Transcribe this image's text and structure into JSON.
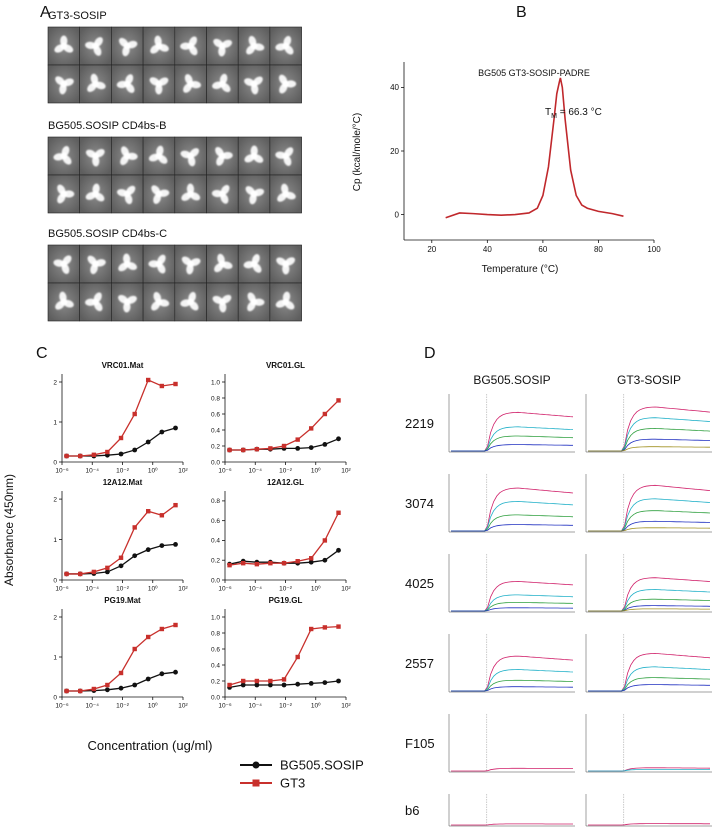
{
  "panel_labels": [
    "A",
    "B",
    "C",
    "D"
  ],
  "panel_a": {
    "groups": [
      {
        "title": "GT3-SOSIP"
      },
      {
        "title": "BG505.SOSIP CD4bs-B"
      },
      {
        "title": "BG505.SOSIP CD4bs-C"
      }
    ]
  },
  "panel_c": {
    "y_label": "Absorbance (450nm)",
    "x_label": "Concentration (ug/ml)",
    "series": [
      {
        "name": "BG505.SOSIP",
        "color": "#111111"
      },
      {
        "name": "GT3",
        "color": "#c8302c"
      }
    ]
  },
  "panel_d": {
    "columns": [
      "BG505.SOSIP",
      "GT3-SOSIP"
    ],
    "colors": [
      "#d0206a",
      "#20b0c8",
      "#30a040",
      "#2030c0",
      "#a09020"
    ],
    "rows": [
      {
        "label": "2219",
        "cells": [
          [
            0.72,
            0.45,
            0.28,
            0.12
          ],
          [
            0.82,
            0.62,
            0.42,
            0.22,
            0.08
          ]
        ]
      },
      {
        "label": "3074",
        "cells": [
          [
            0.8,
            0.55,
            0.3,
            0.12
          ],
          [
            0.85,
            0.6,
            0.38,
            0.18,
            0.06
          ]
        ]
      },
      {
        "label": "4025",
        "cells": [
          [
            0.55,
            0.3,
            0.16,
            0.06
          ],
          [
            0.62,
            0.4,
            0.22,
            0.1,
            0.04
          ]
        ]
      },
      {
        "label": "2557",
        "cells": [
          [
            0.65,
            0.4,
            0.2,
            0.08
          ],
          [
            0.7,
            0.45,
            0.25,
            0.12
          ]
        ]
      },
      {
        "label": "F105",
        "cells": [
          [
            0.05
          ],
          [
            0.06,
            0.03
          ]
        ]
      },
      {
        "label": "b6",
        "cells": [
          [
            0.04
          ],
          [
            0.05
          ]
        ]
      }
    ]
  },
  "chart_data": [
    {
      "type": "line",
      "title": "BG505 GT3-SOSIP-PADRE",
      "annotation": [
        "T",
        "M",
        " = 66.3 °C"
      ],
      "x_label": "Temperature (°C)",
      "y_label": "Cp (kcal/mole/°C)",
      "x": [
        25,
        30,
        35,
        40,
        45,
        50,
        55,
        58,
        60,
        62,
        64,
        65,
        66,
        66.3,
        67,
        68,
        70,
        72,
        74,
        76,
        80,
        85,
        89
      ],
      "series": [
        {
          "color": "#c0282c",
          "values": [
            -1,
            0.5,
            0.3,
            0,
            -0.2,
            0,
            0.5,
            2,
            6,
            15,
            30,
            38,
            42,
            43,
            40,
            30,
            14,
            6,
            3,
            2,
            1,
            0.3,
            -0.5
          ]
        }
      ],
      "xlim": [
        10,
        100
      ],
      "xticks": [
        20,
        40,
        60,
        80,
        100
      ],
      "ylim": [
        -8,
        48
      ],
      "yticks": [
        0,
        20,
        40
      ]
    },
    {
      "type": "line",
      "title": "VRC01.Mat",
      "log_x": true,
      "x": [
        2e-06,
        1.6e-05,
        0.000128,
        0.001,
        0.008,
        0.064,
        0.5,
        4,
        32
      ],
      "series": [
        {
          "values": [
            0.15,
            0.15,
            0.15,
            0.17,
            0.2,
            0.3,
            0.5,
            0.75,
            0.85
          ]
        },
        {
          "values": [
            0.15,
            0.15,
            0.18,
            0.25,
            0.6,
            1.2,
            2.05,
            1.9,
            1.95
          ]
        }
      ],
      "xlim": [
        1e-06,
        100
      ],
      "xticks": [
        {
          "value": 1e-06,
          "label": "10⁻⁶"
        },
        {
          "value": 0.0001,
          "label": "10⁻⁴"
        },
        {
          "value": 0.01,
          "label": "10⁻²"
        },
        {
          "value": 1,
          "label": "10⁰"
        },
        {
          "value": 100,
          "label": "10²"
        }
      ],
      "ylim": [
        0,
        2.2
      ],
      "yticks": [
        0,
        1,
        2
      ]
    },
    {
      "type": "line",
      "title": "VRC01.GL",
      "log_x": true,
      "x": [
        2e-06,
        1.6e-05,
        0.000128,
        0.001,
        0.008,
        0.064,
        0.5,
        4,
        32
      ],
      "series": [
        {
          "values": [
            0.15,
            0.15,
            0.16,
            0.16,
            0.17,
            0.17,
            0.18,
            0.22,
            0.29
          ]
        },
        {
          "values": [
            0.15,
            0.15,
            0.16,
            0.17,
            0.2,
            0.28,
            0.42,
            0.6,
            0.77
          ]
        }
      ],
      "xlim": [
        1e-06,
        100
      ],
      "xticks": [
        {
          "value": 1e-06,
          "label": "10⁻⁶"
        },
        {
          "value": 0.0001,
          "label": "10⁻⁴"
        },
        {
          "value": 0.01,
          "label": "10⁻²"
        },
        {
          "value": 1,
          "label": "10⁰"
        },
        {
          "value": 100,
          "label": "10²"
        }
      ],
      "ylim": [
        0,
        1.1
      ],
      "yticks": [
        {
          "value": 0,
          "label": "0.0"
        },
        0.2,
        0.4,
        0.6,
        0.8,
        {
          "value": 1,
          "label": "1.0"
        }
      ]
    },
    {
      "type": "line",
      "title": "12A12.Mat",
      "log_x": true,
      "x": [
        2e-06,
        1.6e-05,
        0.000128,
        0.001,
        0.008,
        0.064,
        0.5,
        4,
        32
      ],
      "series": [
        {
          "values": [
            0.15,
            0.15,
            0.16,
            0.2,
            0.35,
            0.6,
            0.75,
            0.85,
            0.88
          ]
        },
        {
          "values": [
            0.15,
            0.15,
            0.2,
            0.3,
            0.55,
            1.3,
            1.7,
            1.6,
            1.85
          ]
        }
      ],
      "xlim": [
        1e-06,
        100
      ],
      "xticks": [
        {
          "value": 1e-06,
          "label": "10⁻⁶"
        },
        {
          "value": 0.0001,
          "label": "10⁻⁴"
        },
        {
          "value": 0.01,
          "label": "10⁻²"
        },
        {
          "value": 1,
          "label": "10⁰"
        },
        {
          "value": 100,
          "label": "10²"
        }
      ],
      "ylim": [
        0,
        2.2
      ],
      "yticks": [
        0,
        1,
        2
      ]
    },
    {
      "type": "line",
      "title": "12A12.GL",
      "log_x": true,
      "x": [
        2e-06,
        1.6e-05,
        0.000128,
        0.001,
        0.008,
        0.064,
        0.5,
        4,
        32
      ],
      "series": [
        {
          "values": [
            0.16,
            0.19,
            0.18,
            0.18,
            0.17,
            0.17,
            0.18,
            0.2,
            0.3
          ]
        },
        {
          "values": [
            0.15,
            0.17,
            0.16,
            0.17,
            0.17,
            0.19,
            0.22,
            0.4,
            0.68
          ]
        }
      ],
      "xlim": [
        1e-06,
        100
      ],
      "xticks": [
        {
          "value": 1e-06,
          "label": "10⁻⁶"
        },
        {
          "value": 0.0001,
          "label": "10⁻⁴"
        },
        {
          "value": 0.01,
          "label": "10⁻²"
        },
        {
          "value": 1,
          "label": "10⁰"
        },
        {
          "value": 100,
          "label": "10²"
        }
      ],
      "ylim": [
        0,
        0.9
      ],
      "yticks": [
        {
          "value": 0,
          "label": "0.0"
        },
        0.2,
        0.4,
        0.6,
        0.8
      ]
    },
    {
      "type": "line",
      "title": "PG19.Mat",
      "log_x": true,
      "x": [
        2e-06,
        1.6e-05,
        0.000128,
        0.001,
        0.008,
        0.064,
        0.5,
        4,
        32
      ],
      "series": [
        {
          "values": [
            0.15,
            0.15,
            0.16,
            0.18,
            0.22,
            0.3,
            0.45,
            0.58,
            0.62
          ]
        },
        {
          "values": [
            0.15,
            0.15,
            0.2,
            0.3,
            0.6,
            1.2,
            1.5,
            1.7,
            1.8
          ]
        }
      ],
      "xlim": [
        1e-06,
        100
      ],
      "xticks": [
        {
          "value": 1e-06,
          "label": "10⁻⁶"
        },
        {
          "value": 0.0001,
          "label": "10⁻⁴"
        },
        {
          "value": 0.01,
          "label": "10⁻²"
        },
        {
          "value": 1,
          "label": "10⁰"
        },
        {
          "value": 100,
          "label": "10²"
        }
      ],
      "ylim": [
        0,
        2.2
      ],
      "yticks": [
        0,
        1,
        2
      ]
    },
    {
      "type": "line",
      "title": "PG19.GL",
      "log_x": true,
      "x": [
        2e-06,
        1.6e-05,
        0.000128,
        0.001,
        0.008,
        0.064,
        0.5,
        4,
        32
      ],
      "series": [
        {
          "values": [
            0.12,
            0.15,
            0.15,
            0.15,
            0.15,
            0.16,
            0.17,
            0.18,
            0.2
          ]
        },
        {
          "values": [
            0.15,
            0.2,
            0.2,
            0.2,
            0.22,
            0.5,
            0.85,
            0.87,
            0.88
          ]
        }
      ],
      "xlim": [
        1e-06,
        100
      ],
      "xticks": [
        {
          "value": 1e-06,
          "label": "10⁻⁶"
        },
        {
          "value": 0.0001,
          "label": "10⁻⁴"
        },
        {
          "value": 0.01,
          "label": "10⁻²"
        },
        {
          "value": 1,
          "label": "10⁰"
        },
        {
          "value": 100,
          "label": "10²"
        }
      ],
      "ylim": [
        0,
        1.1
      ],
      "yticks": [
        {
          "value": 0,
          "label": "0.0"
        },
        0.2,
        0.4,
        0.6,
        0.8,
        {
          "value": 1,
          "label": "1.0"
        }
      ]
    }
  ]
}
